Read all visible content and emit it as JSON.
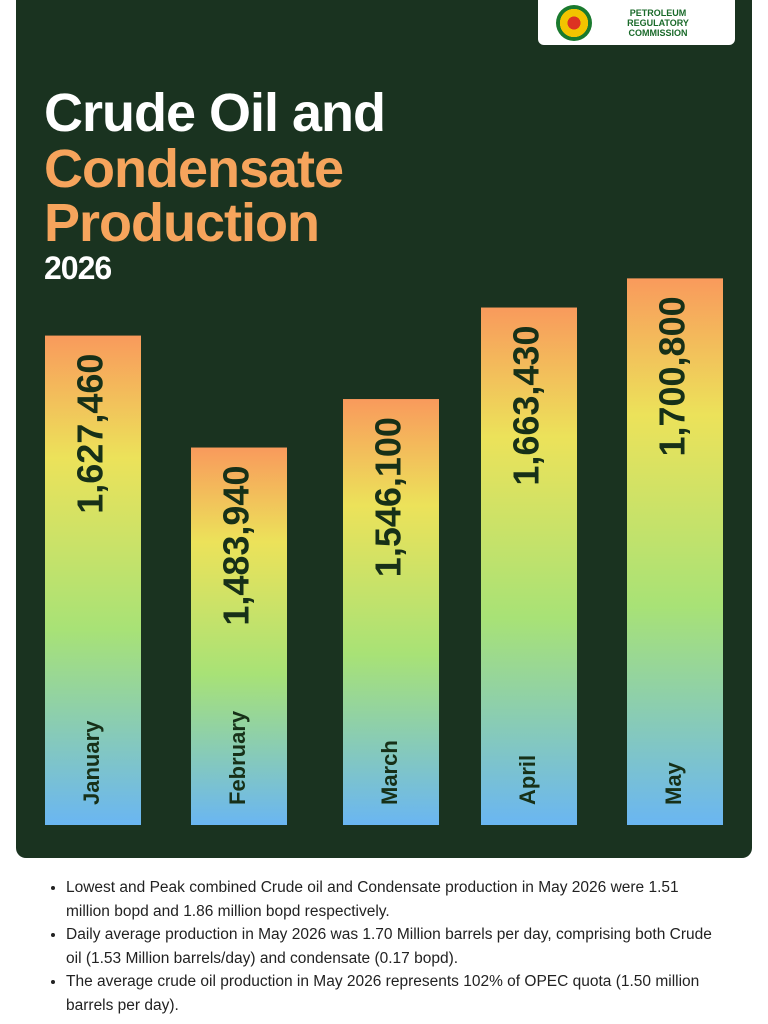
{
  "logo": {
    "text": "PETROLEUM REGULATORY COMMISSION"
  },
  "chart_data": {
    "type": "bar",
    "title": "Crude Oil and",
    "title_accent": "Condensate Production",
    "subtitle": "2026",
    "categories": [
      "January",
      "February",
      "March",
      "April",
      "May"
    ],
    "values": [
      1627460,
      1483940,
      1546100,
      1663430,
      1700800
    ],
    "value_labels": [
      "1,627,460",
      "1,483,940",
      "1,546,100",
      "1,663,430",
      "1,700,800"
    ],
    "ylim": [
      1000000,
      1750000
    ],
    "grid": false
  },
  "notes": [
    "Lowest and Peak combined Crude oil and Condensate production in May 2026 were 1.51 million bopd and 1.86 million bopd respectively.",
    "Daily average production in May 2026 was 1.70 Million barrels per day, comprising both Crude oil (1.53 Million barrels/day) and condensate (0.17 bopd).",
    "The average crude oil production in May 2026 represents 102% of OPEC quota (1.50 million barrels per day)."
  ]
}
